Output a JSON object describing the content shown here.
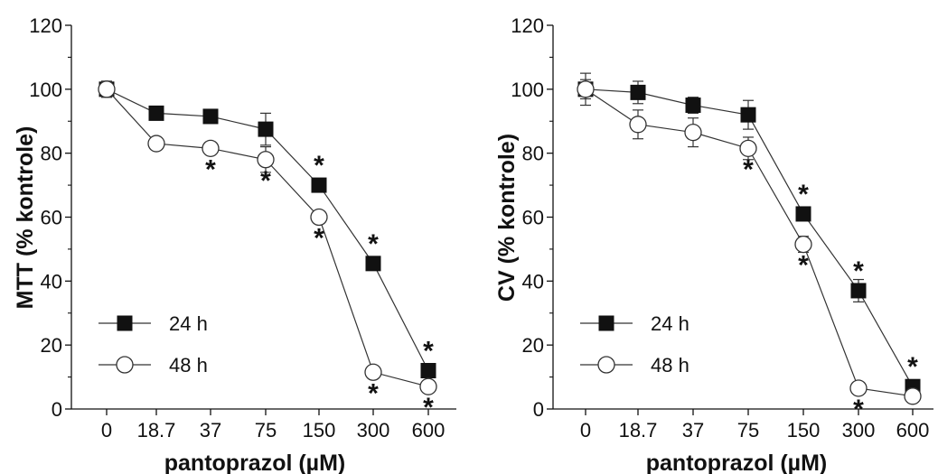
{
  "chart_data": [
    {
      "type": "line",
      "panel": "MTT",
      "ylabel": "MTT (% kontrole)",
      "xlabel": "pantoprazol (µM)",
      "categories": [
        "0",
        "18.7",
        "37",
        "75",
        "150",
        "300",
        "600"
      ],
      "ylim": [
        0,
        120
      ],
      "yticks": [
        "0",
        "20",
        "40",
        "60",
        "80",
        "100",
        "120"
      ],
      "legend_position": "bottom-left",
      "grid": false,
      "series": [
        {
          "name": "24 h",
          "marker": "filled-square",
          "values": [
            100,
            92.5,
            91.5,
            87.5,
            70,
            45.5,
            12
          ],
          "errors": [
            2.5,
            1.5,
            1.5,
            5,
            2,
            1.5,
            2
          ],
          "significance": [
            "",
            "",
            "",
            "",
            "*",
            "*",
            "*"
          ]
        },
        {
          "name": "48 h",
          "marker": "open-circle",
          "values": [
            100,
            83,
            81.5,
            78,
            60,
            11.5,
            7
          ],
          "errors": [
            2.5,
            1.5,
            2,
            4,
            1.5,
            1,
            1
          ],
          "significance": [
            "",
            "",
            "*",
            "*",
            "*",
            "*",
            "*"
          ]
        }
      ]
    },
    {
      "type": "line",
      "panel": "CV",
      "ylabel": "CV (% kontrole)",
      "xlabel": "pantoprazol (µM)",
      "categories": [
        "0",
        "18.7",
        "37",
        "75",
        "150",
        "300",
        "600"
      ],
      "ylim": [
        0,
        120
      ],
      "yticks": [
        "0",
        "20",
        "40",
        "60",
        "80",
        "100",
        "120"
      ],
      "legend_position": "bottom-left",
      "grid": false,
      "series": [
        {
          "name": "24 h",
          "marker": "filled-square",
          "values": [
            100,
            99,
            95,
            92,
            61,
            37,
            7
          ],
          "errors": [
            3,
            3.5,
            2.5,
            4.5,
            2,
            3.5,
            1.5
          ],
          "significance": [
            "",
            "",
            "",
            "",
            "*",
            "*",
            "*"
          ]
        },
        {
          "name": "48 h",
          "marker": "open-circle",
          "values": [
            100,
            89,
            86.5,
            81.5,
            51.5,
            6.5,
            4
          ],
          "errors": [
            5,
            4.5,
            4.5,
            3.5,
            2.5,
            1,
            1
          ],
          "significance": [
            "",
            "",
            "",
            "*",
            "*",
            "*",
            ""
          ]
        }
      ]
    }
  ]
}
